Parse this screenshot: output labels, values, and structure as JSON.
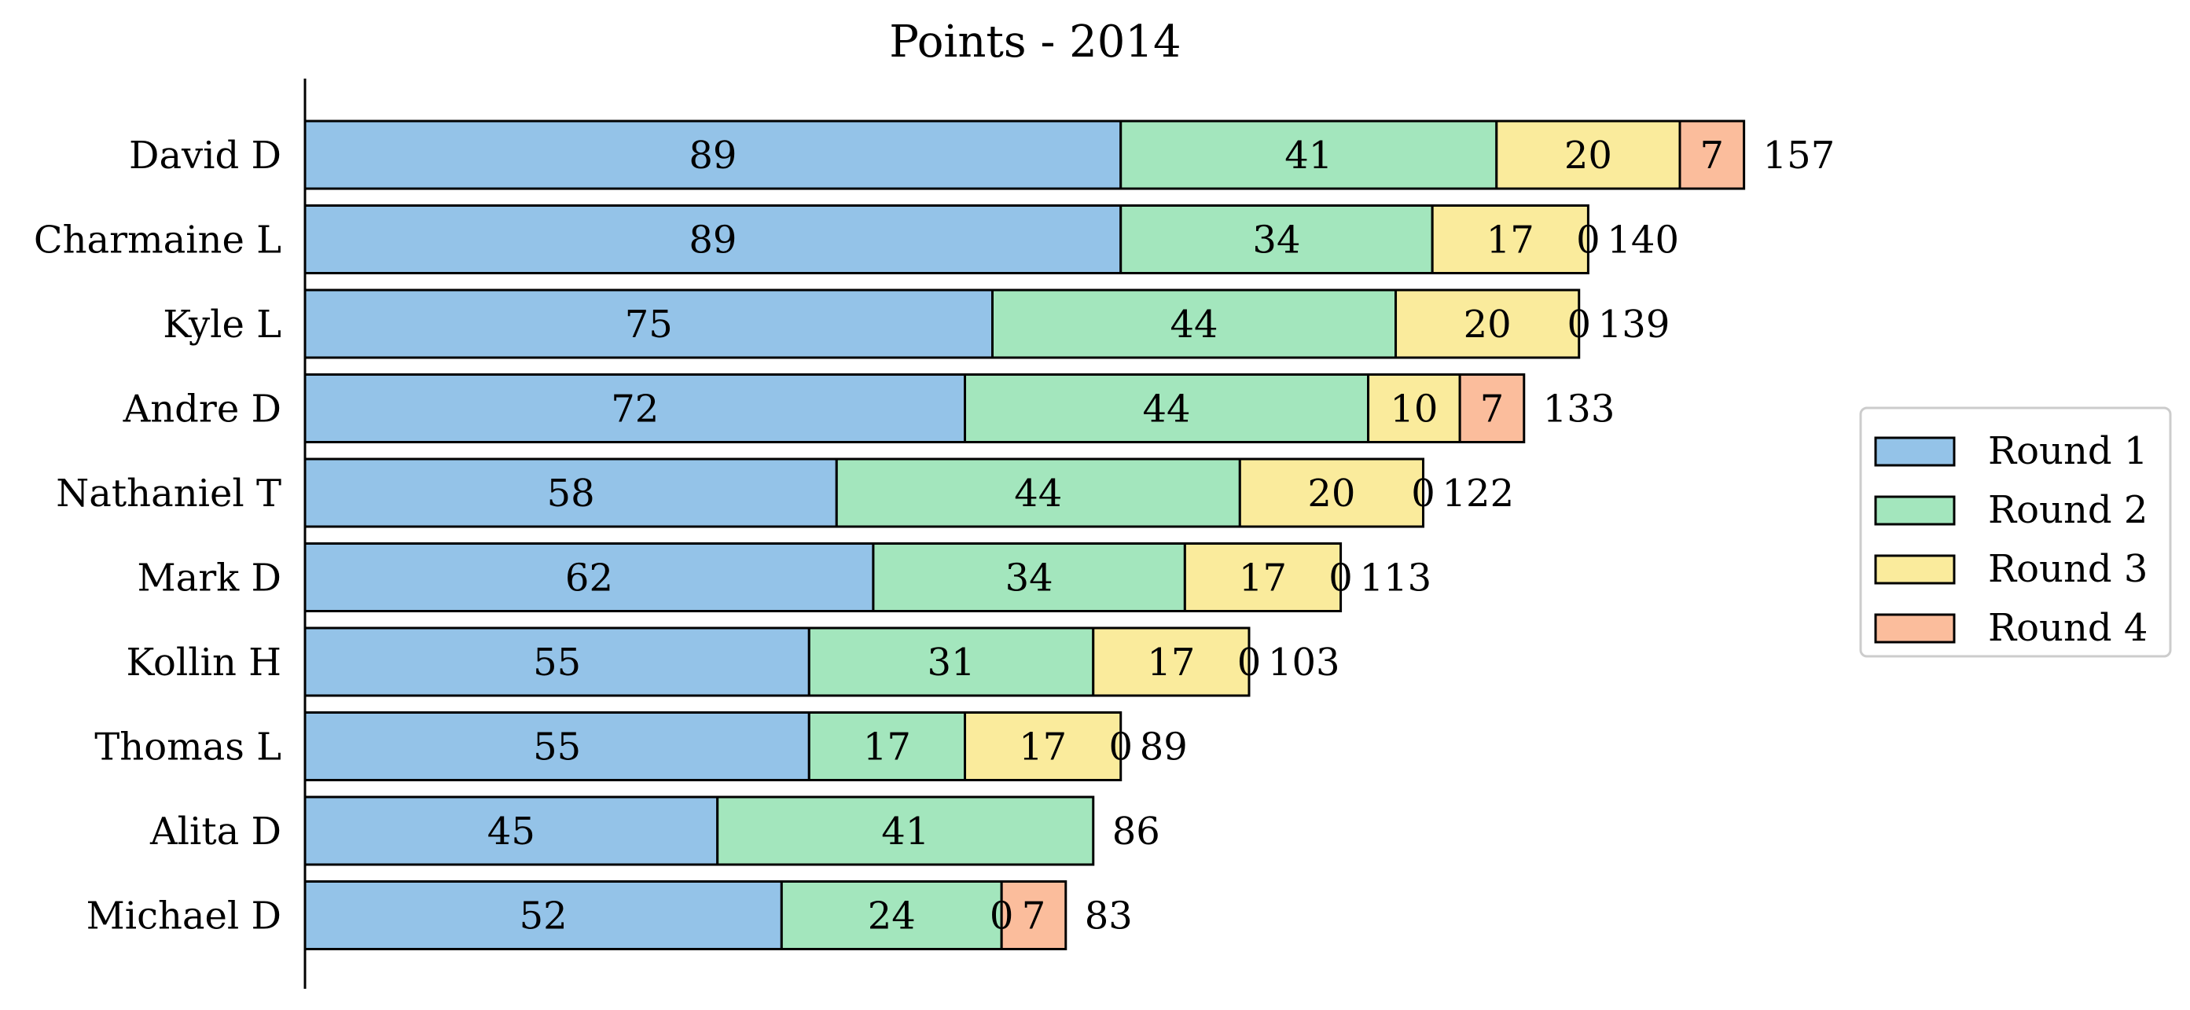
{
  "chart_data": {
    "type": "bar",
    "orientation": "horizontal",
    "stacked": true,
    "title": "Points - 2014",
    "xlabel": "",
    "ylabel": "",
    "categories": [
      "David D",
      "Charmaine L",
      "Kyle L",
      "Andre D",
      "Nathaniel T",
      "Mark D",
      "Kollin H",
      "Thomas L",
      "Alita D",
      "Michael D"
    ],
    "series": [
      {
        "name": "Round 1",
        "color": "#94c3e8",
        "values": [
          89,
          89,
          75,
          72,
          58,
          62,
          55,
          55,
          45,
          52
        ]
      },
      {
        "name": "Round 2",
        "color": "#a3e6bd",
        "values": [
          41,
          34,
          44,
          44,
          44,
          34,
          31,
          17,
          41,
          24
        ]
      },
      {
        "name": "Round 3",
        "color": "#faeb9c",
        "values": [
          20,
          17,
          20,
          10,
          20,
          17,
          17,
          17,
          null,
          0
        ]
      },
      {
        "name": "Round 4",
        "color": "#fbbd9c",
        "values": [
          7,
          0,
          0,
          7,
          0,
          0,
          0,
          0,
          null,
          7
        ]
      }
    ],
    "totals": [
      157,
      140,
      139,
      133,
      122,
      113,
      103,
      89,
      86,
      83
    ],
    "xlim": [
      0,
      207
    ],
    "grid": false,
    "legend_position": "right"
  }
}
